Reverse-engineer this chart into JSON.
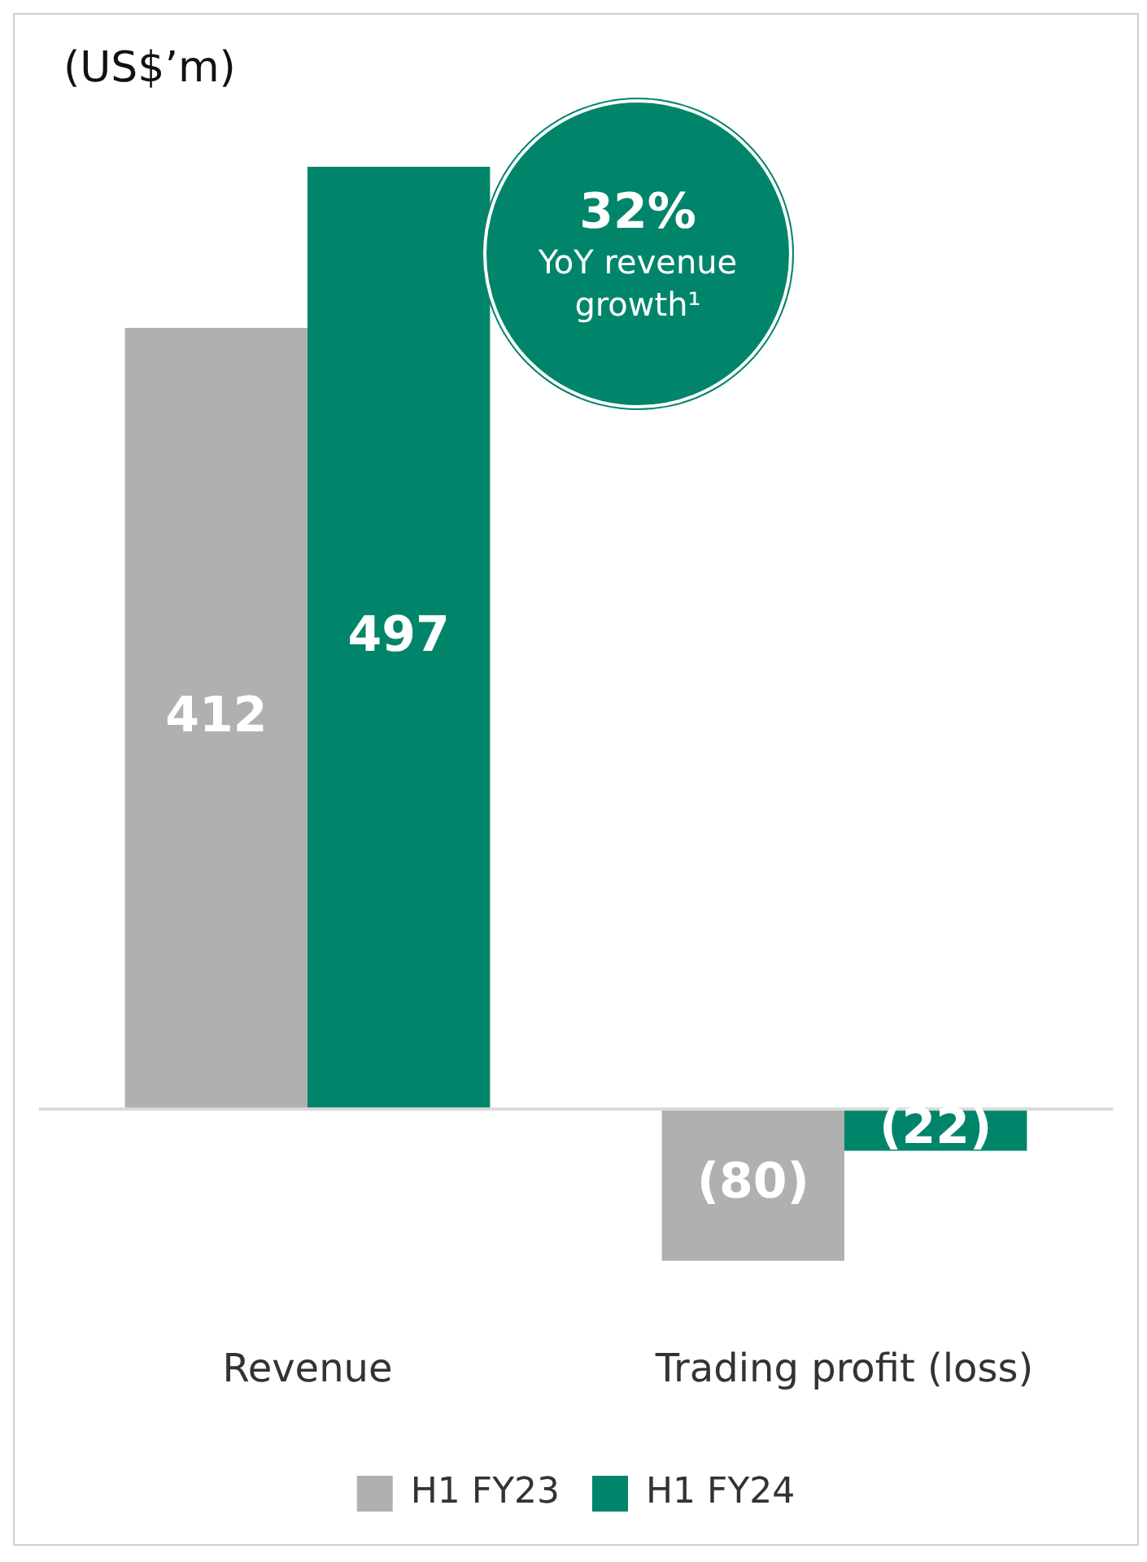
{
  "chart_data": {
    "type": "bar",
    "ylabel": "(US$’m)",
    "categories": [
      "Revenue",
      "Trading profit (loss)"
    ],
    "series": [
      {
        "name": "H1 FY23",
        "color": "#b0b0b0",
        "values": [
          412,
          -80
        ],
        "value_labels": [
          "412",
          "(80)"
        ]
      },
      {
        "name": "H1 FY24",
        "color": "#00856a",
        "values": [
          497,
          -22
        ],
        "value_labels": [
          "497",
          "(22)"
        ]
      }
    ],
    "annotations": [
      "32%",
      "YoY revenue growth¹"
    ],
    "legend": "bottom",
    "grid": false
  }
}
